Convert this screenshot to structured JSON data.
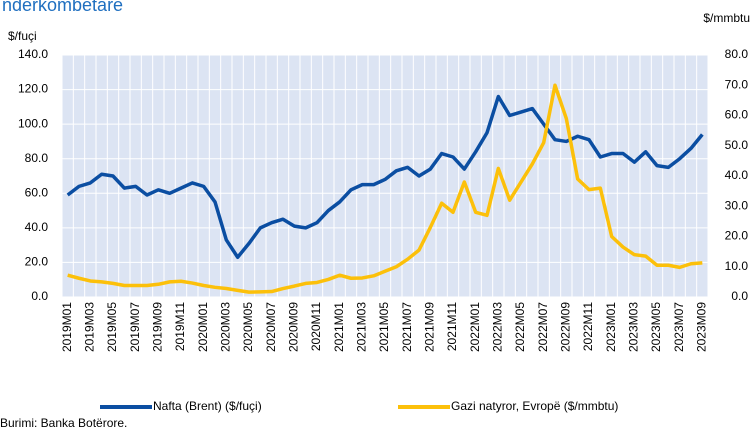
{
  "chart_data": {
    "type": "line",
    "title": "ndërkombëtare",
    "y_label": "$/fuçi",
    "y2_label": "$/mmbtu",
    "source": "Burimi: Banka Botërore.",
    "categories": [
      "2019M01",
      null,
      "2019M03",
      null,
      "2019M05",
      null,
      "2019M07",
      null,
      "2019M09",
      null,
      "2019M11",
      null,
      "2020M01",
      null,
      "2020M03",
      null,
      "2020M05",
      null,
      "2020M07",
      null,
      "2020M09",
      null,
      "2020M11",
      null,
      "2021M01",
      null,
      "2021M03",
      null,
      "2021M05",
      null,
      "2021M07",
      null,
      "2021M09",
      null,
      "2021M11",
      null,
      "2022M01",
      null,
      "2022M03",
      null,
      "2022M05",
      null,
      "2022M07",
      null,
      "2022M09",
      null,
      "2022M11",
      null,
      "2023M01",
      null,
      "2023M03",
      null,
      "2023M05",
      null,
      "2023M07",
      null,
      "2023M09"
    ],
    "series": [
      {
        "name": "Nafta (Brent) ($/fuçi)",
        "color": "#0b4ea2",
        "axis": "y",
        "values": [
          59,
          64,
          66,
          71,
          70,
          63,
          64,
          59,
          62,
          60,
          63,
          66,
          64,
          55,
          33,
          23,
          31,
          40,
          43,
          45,
          41,
          40,
          43,
          50,
          55,
          62,
          65,
          65,
          68,
          73,
          75,
          70,
          74,
          83,
          81,
          74,
          84,
          95,
          116,
          105,
          107,
          109,
          100,
          91,
          90,
          93,
          91,
          81,
          83,
          83,
          78,
          84,
          76,
          75,
          80,
          86,
          94
        ]
      },
      {
        "name": "Gazi natyror, Evropë ($/mmbtu)",
        "color": "#fcc00a",
        "axis": "y2",
        "values": [
          7.2,
          6.2,
          5.3,
          5,
          4.5,
          3.8,
          3.8,
          3.8,
          4.2,
          5,
          5.2,
          4.6,
          3.8,
          3.2,
          2.8,
          2.2,
          1.6,
          1.7,
          1.8,
          2.8,
          3.6,
          4.5,
          4.8,
          5.8,
          7.2,
          6.2,
          6.3,
          7,
          8.5,
          10,
          12.5,
          15.5,
          23,
          31,
          28,
          38,
          28,
          27,
          42.5,
          32,
          38,
          44,
          51,
          70,
          59,
          39,
          35.5,
          36,
          20,
          16.5,
          14,
          13.5,
          10.5,
          10.5,
          9.8,
          11,
          11.3
        ]
      }
    ],
    "ylim": [
      0,
      140
    ],
    "yticks": [
      {
        "value": 0,
        "label": "0.0"
      },
      {
        "value": 20,
        "label": "20.0"
      },
      {
        "value": 40,
        "label": "40.0"
      },
      {
        "value": 60,
        "label": "60.0"
      },
      {
        "value": 80,
        "label": "80.0"
      },
      {
        "value": 100,
        "label": "100.0"
      },
      {
        "value": 120,
        "label": "120.0"
      },
      {
        "value": 140,
        "label": "140.0"
      }
    ],
    "y2lim": [
      0,
      80
    ],
    "y2ticks": [
      {
        "value": 0,
        "label": "0.0"
      },
      {
        "value": 10,
        "label": "10.0"
      },
      {
        "value": 20,
        "label": "20.0"
      },
      {
        "value": 30,
        "label": "30.0"
      },
      {
        "value": 40,
        "label": "40.0"
      },
      {
        "value": 50,
        "label": "50.0"
      },
      {
        "value": 60,
        "label": "60.0"
      },
      {
        "value": 70,
        "label": "70.0"
      },
      {
        "value": 80,
        "label": "80.0"
      }
    ],
    "grid": true,
    "legend": "bottom"
  }
}
